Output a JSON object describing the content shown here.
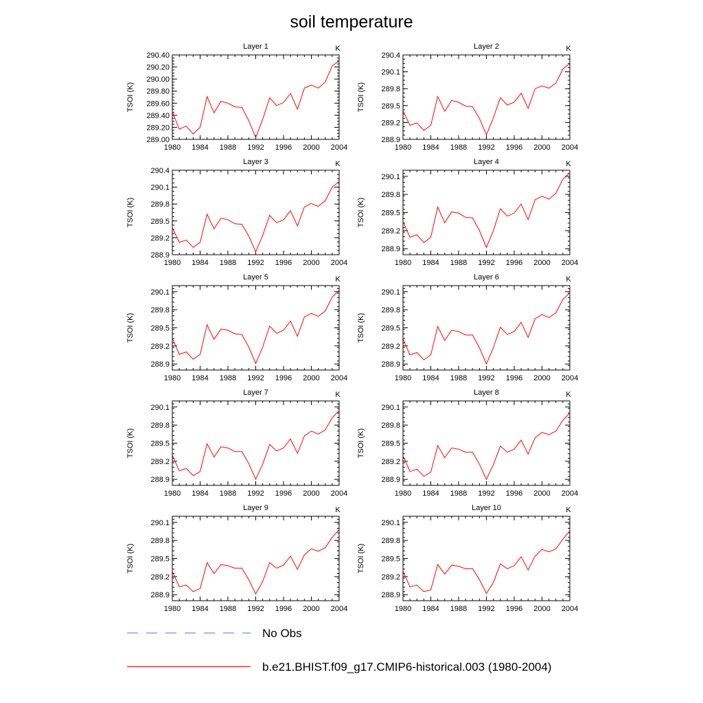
{
  "title": "soil temperature",
  "legend": {
    "items": [
      {
        "label": "No Obs",
        "color": "#8080ff",
        "style": "dashed"
      },
      {
        "label": "b.e21.BHIST.f09_g17.CMIP6-historical.003 (1980-2004)",
        "color": "#ff0000",
        "style": "solid"
      }
    ]
  },
  "chart_data": {
    "type": "line",
    "years": [
      1980,
      1981,
      1982,
      1983,
      1984,
      1985,
      1986,
      1987,
      1988,
      1989,
      1990,
      1991,
      1992,
      1993,
      1994,
      1995,
      1996,
      1997,
      1998,
      1999,
      2000,
      2001,
      2002,
      2003,
      2004
    ],
    "xticks": [
      "1980",
      "1984",
      "1988",
      "1992",
      "1996",
      "2000",
      "2004"
    ],
    "xlim": [
      1980,
      2004
    ],
    "ylabel": "TSOI  (K)",
    "units": "K",
    "series_color": "#ff0000",
    "panels": [
      {
        "title": "Layer 1",
        "ylim": [
          289.0,
          290.4
        ],
        "yticks": [
          "289.00",
          "289.20",
          "289.40",
          "289.60",
          "289.80",
          "290.00",
          "290.20",
          "290.40"
        ],
        "values": [
          289.46,
          289.17,
          289.22,
          289.09,
          289.2,
          289.71,
          289.44,
          289.63,
          289.6,
          289.54,
          289.53,
          289.31,
          289.03,
          289.33,
          289.69,
          289.56,
          289.61,
          289.76,
          289.5,
          289.85,
          289.9,
          289.85,
          289.95,
          290.22,
          290.3
        ]
      },
      {
        "title": "Layer 2",
        "ylim": [
          288.9,
          290.4
        ],
        "yticks": [
          "288.9",
          "289.2",
          "289.5",
          "289.8",
          "290.1",
          "290.4"
        ],
        "values": [
          289.41,
          289.15,
          289.19,
          289.06,
          289.15,
          289.66,
          289.4,
          289.59,
          289.56,
          289.49,
          289.48,
          289.27,
          288.98,
          289.28,
          289.64,
          289.51,
          289.56,
          289.72,
          289.45,
          289.8,
          289.85,
          289.81,
          289.9,
          290.15,
          290.25
        ]
      },
      {
        "title": "Layer 3",
        "ylim": [
          288.9,
          290.4
        ],
        "yticks": [
          "288.9",
          "289.2",
          "289.5",
          "289.8",
          "290.1",
          "290.4"
        ],
        "values": [
          289.38,
          289.12,
          289.16,
          289.03,
          289.12,
          289.62,
          289.36,
          289.55,
          289.52,
          289.45,
          289.44,
          289.23,
          288.95,
          289.24,
          289.6,
          289.47,
          289.52,
          289.68,
          289.41,
          289.75,
          289.81,
          289.76,
          289.86,
          290.1,
          290.2
        ]
      },
      {
        "title": "Layer 4",
        "ylim": [
          288.8,
          290.2
        ],
        "yticks": [
          "288.9",
          "289.2",
          "289.5",
          "289.8",
          "290.1"
        ],
        "values": [
          289.35,
          289.09,
          289.13,
          289.0,
          289.09,
          289.59,
          289.33,
          289.51,
          289.49,
          289.42,
          289.41,
          289.2,
          288.92,
          289.2,
          289.56,
          289.44,
          289.49,
          289.64,
          289.38,
          289.71,
          289.77,
          289.72,
          289.82,
          290.05,
          290.16
        ]
      },
      {
        "title": "Layer 5",
        "ylim": [
          288.8,
          290.2
        ],
        "yticks": [
          "288.9",
          "289.2",
          "289.5",
          "289.8",
          "290.1"
        ],
        "values": [
          289.33,
          289.06,
          289.1,
          288.98,
          289.06,
          289.55,
          289.31,
          289.48,
          289.46,
          289.4,
          289.39,
          289.18,
          288.91,
          289.18,
          289.53,
          289.41,
          289.46,
          289.61,
          289.36,
          289.68,
          289.74,
          289.69,
          289.78,
          290.01,
          290.12
        ]
      },
      {
        "title": "Layer 6",
        "ylim": [
          288.8,
          290.2
        ],
        "yticks": [
          "288.9",
          "289.2",
          "289.5",
          "289.8",
          "290.1"
        ],
        "values": [
          289.32,
          289.05,
          289.09,
          288.97,
          289.05,
          289.52,
          289.29,
          289.46,
          289.44,
          289.38,
          289.38,
          289.17,
          288.9,
          289.17,
          289.51,
          289.39,
          289.44,
          289.59,
          289.34,
          289.65,
          289.72,
          289.67,
          289.75,
          289.97,
          290.08
        ]
      },
      {
        "title": "Layer 7",
        "ylim": [
          288.8,
          290.2
        ],
        "yticks": [
          "288.9",
          "289.2",
          "289.5",
          "289.8",
          "290.1"
        ],
        "values": [
          289.3,
          289.04,
          289.08,
          288.96,
          289.03,
          289.49,
          289.27,
          289.44,
          289.42,
          289.36,
          289.36,
          289.16,
          288.9,
          289.15,
          289.48,
          289.37,
          289.42,
          289.57,
          289.33,
          289.62,
          289.7,
          289.65,
          289.72,
          289.92,
          290.04
        ]
      },
      {
        "title": "Layer 8",
        "ylim": [
          288.8,
          290.2
        ],
        "yticks": [
          "288.9",
          "289.2",
          "289.5",
          "289.8",
          "290.1"
        ],
        "values": [
          289.29,
          289.03,
          289.07,
          288.95,
          289.02,
          289.46,
          289.26,
          289.42,
          289.4,
          289.35,
          289.35,
          289.15,
          288.9,
          289.14,
          289.45,
          289.35,
          289.4,
          289.55,
          289.32,
          289.59,
          289.68,
          289.64,
          289.7,
          289.88,
          290.0
        ]
      },
      {
        "title": "Layer 9",
        "ylim": [
          288.8,
          290.2
        ],
        "yticks": [
          "288.9",
          "289.2",
          "289.5",
          "289.8",
          "290.1"
        ],
        "values": [
          289.29,
          289.03,
          289.06,
          288.95,
          289.0,
          289.43,
          289.25,
          289.4,
          289.38,
          289.34,
          289.34,
          289.15,
          288.91,
          289.12,
          289.43,
          289.34,
          289.39,
          289.54,
          289.32,
          289.56,
          289.66,
          289.62,
          289.68,
          289.85,
          289.98
        ]
      },
      {
        "title": "Layer 10",
        "ylim": [
          288.8,
          290.2
        ],
        "yticks": [
          "288.9",
          "289.2",
          "289.5",
          "289.8",
          "290.1"
        ],
        "values": [
          289.29,
          289.03,
          289.06,
          288.95,
          288.98,
          289.4,
          289.24,
          289.39,
          289.37,
          289.33,
          289.33,
          289.15,
          288.92,
          289.1,
          289.41,
          289.33,
          289.38,
          289.53,
          289.31,
          289.54,
          289.65,
          289.61,
          289.66,
          289.82,
          289.96
        ]
      }
    ]
  }
}
